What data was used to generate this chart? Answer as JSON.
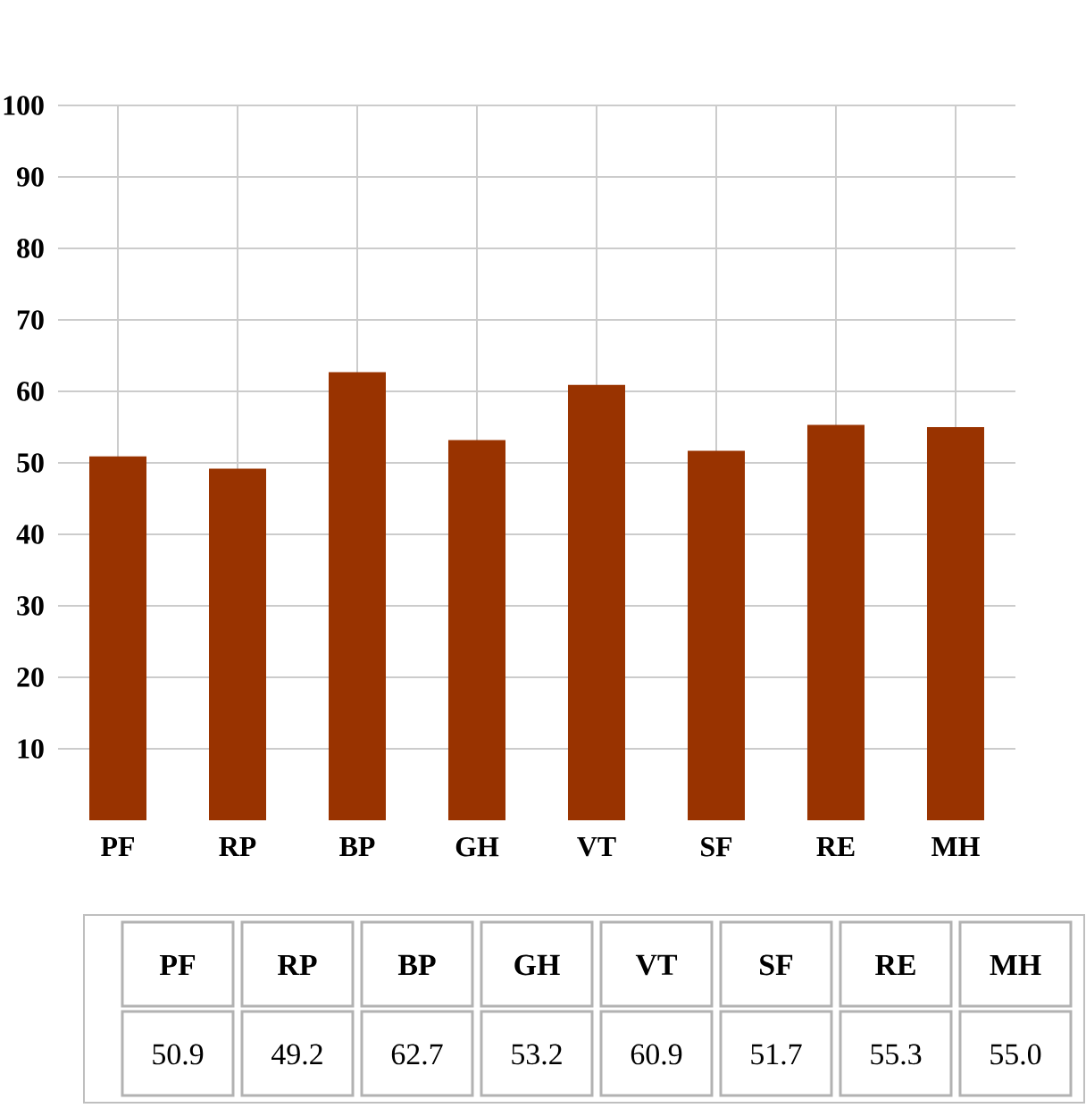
{
  "chart_data": {
    "type": "bar",
    "categories": [
      "PF",
      "RP",
      "BP",
      "GH",
      "VT",
      "SF",
      "RE",
      "MH"
    ],
    "values": [
      50.9,
      49.2,
      62.7,
      53.2,
      60.9,
      51.7,
      55.3,
      55.0
    ],
    "value_labels": [
      "50.9",
      "49.2",
      "62.7",
      "53.2",
      "60.9",
      "51.7",
      "55.3",
      "55.0"
    ],
    "color": "#993300",
    "ylim": [
      0,
      100
    ],
    "yticks": [
      10,
      20,
      30,
      40,
      50,
      60,
      70,
      80,
      90,
      100
    ],
    "grid": true
  }
}
